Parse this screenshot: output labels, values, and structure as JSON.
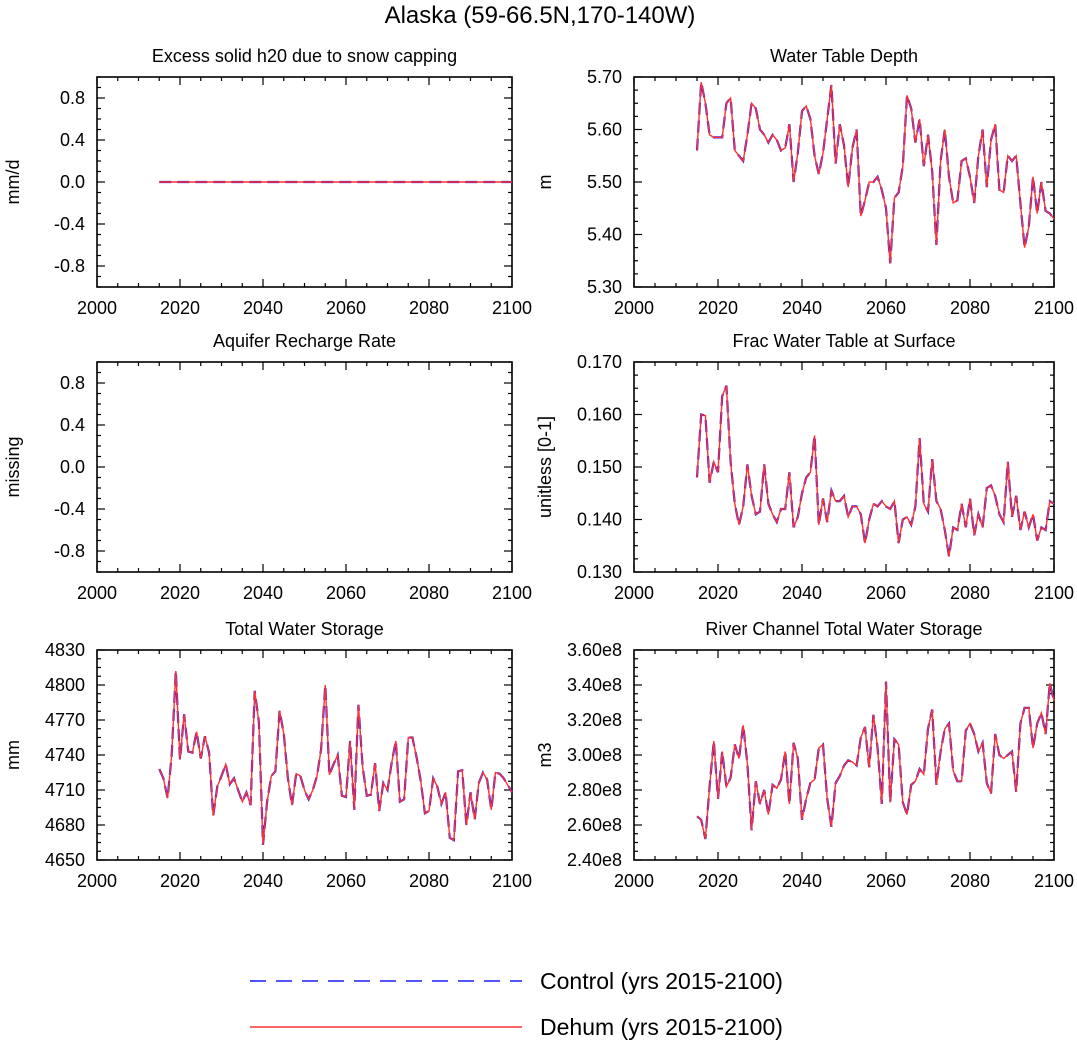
{
  "chart_data": {
    "title": "Alaska (59-66.5N,170-140W)",
    "legend": {
      "placement": "bottom-center",
      "entries": [
        {
          "name": "Control (yrs 2015-2100)",
          "color": "#1a1aff",
          "style": "dashed"
        },
        {
          "name": "Dehum (yrs 2015-2100)",
          "color": "#ff3030",
          "style": "solid"
        }
      ]
    },
    "panels": [
      {
        "id": "snow-capping",
        "type": "line",
        "title": "Excess solid h20 due to snow capping",
        "ylabel": "mm/d",
        "xlim": [
          2000,
          2100
        ],
        "xticks": [
          2000,
          2020,
          2040,
          2060,
          2080,
          2100
        ],
        "ylim": [
          -1.0,
          1.0
        ],
        "yticks": [
          -0.8,
          -0.4,
          0.0,
          0.4,
          0.8
        ],
        "ytick_labels": [
          "-0.8",
          "-0.4",
          "0.0",
          "0.4",
          "0.8"
        ],
        "x_start": 2015,
        "x_end": 2100,
        "constant_value": 0.0
      },
      {
        "id": "water-table-depth",
        "type": "line",
        "title": "Water Table Depth",
        "ylabel": "m",
        "xlim": [
          2000,
          2100
        ],
        "xticks": [
          2000,
          2020,
          2040,
          2060,
          2080,
          2100
        ],
        "ylim": [
          5.3,
          5.7
        ],
        "yticks": [
          5.3,
          5.4,
          5.5,
          5.6,
          5.7
        ],
        "ytick_labels": [
          "5.30",
          "5.40",
          "5.50",
          "5.60",
          "5.70"
        ],
        "x_start": 2015,
        "values": [
          5.56,
          5.69,
          5.65,
          5.59,
          5.585,
          5.585,
          5.585,
          5.65,
          5.66,
          5.56,
          5.55,
          5.54,
          5.59,
          5.65,
          5.64,
          5.6,
          5.59,
          5.575,
          5.59,
          5.58,
          5.56,
          5.565,
          5.61,
          5.5,
          5.555,
          5.635,
          5.645,
          5.62,
          5.55,
          5.515,
          5.555,
          5.62,
          5.685,
          5.535,
          5.61,
          5.57,
          5.49,
          5.565,
          5.6,
          5.435,
          5.465,
          5.5,
          5.5,
          5.51,
          5.485,
          5.45,
          5.345,
          5.47,
          5.48,
          5.53,
          5.665,
          5.64,
          5.575,
          5.62,
          5.53,
          5.59,
          5.52,
          5.38,
          5.54,
          5.6,
          5.51,
          5.46,
          5.465,
          5.54,
          5.545,
          5.51,
          5.46,
          5.55,
          5.6,
          5.49,
          5.58,
          5.61,
          5.485,
          5.48,
          5.55,
          5.54,
          5.55,
          5.46,
          5.375,
          5.415,
          5.51,
          5.44,
          5.5,
          5.445,
          5.44,
          5.43
        ]
      },
      {
        "id": "aquifer-recharge",
        "type": "line",
        "title": "Aquifer Recharge Rate",
        "ylabel": "missing",
        "xlim": [
          2000,
          2100
        ],
        "xticks": [
          2000,
          2020,
          2040,
          2060,
          2080,
          2100
        ],
        "ylim": [
          -1.0,
          1.0
        ],
        "yticks": [
          -0.8,
          -0.4,
          0.0,
          0.4,
          0.8
        ],
        "ytick_labels": [
          "-0.8",
          "-0.4",
          "0.0",
          "0.4",
          "0.8"
        ],
        "values": []
      },
      {
        "id": "frac-water-table",
        "type": "line",
        "title": "Frac Water Table at Surface",
        "ylabel": "unitless [0-1]",
        "xlim": [
          2000,
          2100
        ],
        "xticks": [
          2000,
          2020,
          2040,
          2060,
          2080,
          2100
        ],
        "ylim": [
          0.13,
          0.17
        ],
        "yticks": [
          0.13,
          0.14,
          0.15,
          0.16,
          0.17
        ],
        "ytick_labels": [
          "0.130",
          "0.140",
          "0.150",
          "0.160",
          "0.170"
        ],
        "x_start": 2015,
        "values": [
          0.148,
          0.16,
          0.1598,
          0.147,
          0.151,
          0.149,
          0.1635,
          0.1655,
          0.151,
          0.143,
          0.139,
          0.1425,
          0.1505,
          0.1445,
          0.141,
          0.1415,
          0.1505,
          0.143,
          0.141,
          0.1395,
          0.142,
          0.142,
          0.149,
          0.1385,
          0.1405,
          0.145,
          0.148,
          0.149,
          0.156,
          0.139,
          0.144,
          0.1395,
          0.1455,
          0.1435,
          0.1435,
          0.1445,
          0.1405,
          0.1425,
          0.1425,
          0.141,
          0.1355,
          0.14,
          0.143,
          0.1425,
          0.1435,
          0.1425,
          0.142,
          0.1435,
          0.1355,
          0.14,
          0.1405,
          0.139,
          0.1425,
          0.1555,
          0.143,
          0.1415,
          0.1515,
          0.1435,
          0.142,
          0.138,
          0.133,
          0.1385,
          0.138,
          0.143,
          0.1385,
          0.144,
          0.137,
          0.141,
          0.1385,
          0.146,
          0.1465,
          0.1445,
          0.141,
          0.1395,
          0.151,
          0.1405,
          0.1445,
          0.138,
          0.1415,
          0.1385,
          0.141,
          0.136,
          0.1385,
          0.138,
          0.1435,
          0.143
        ]
      },
      {
        "id": "total-water-storage",
        "type": "line",
        "title": "Total Water Storage",
        "ylabel": "mm",
        "xlim": [
          2000,
          2100
        ],
        "xticks": [
          2000,
          2020,
          2040,
          2060,
          2080,
          2100
        ],
        "ylim": [
          4650,
          4830
        ],
        "yticks": [
          4650,
          4680,
          4710,
          4740,
          4770,
          4800,
          4830
        ],
        "ytick_labels": [
          "4650",
          "4680",
          "4710",
          "4740",
          "4770",
          "4800",
          "4830"
        ],
        "x_start": 2015,
        "values": [
          4728,
          4720,
          4703,
          4740,
          4812,
          4736,
          4775,
          4743,
          4742,
          4760,
          4737,
          4756,
          4742,
          4688,
          4713,
          4722,
          4732,
          4715,
          4720,
          4710,
          4700,
          4708,
          4697,
          4795,
          4768,
          4663,
          4700,
          4722,
          4726,
          4778,
          4758,
          4720,
          4697,
          4724,
          4722,
          4710,
          4702,
          4710,
          4722,
          4745,
          4800,
          4723,
          4732,
          4740,
          4705,
          4704,
          4752,
          4693,
          4783,
          4730,
          4705,
          4706,
          4733,
          4692,
          4716,
          4710,
          4733,
          4752,
          4700,
          4702,
          4755,
          4755,
          4738,
          4718,
          4690,
          4692,
          4720,
          4713,
          4698,
          4708,
          4669,
          4667,
          4726,
          4727,
          4680,
          4708,
          4685,
          4716,
          4725,
          4719,
          4693,
          4725,
          4724,
          4720,
          4714,
          4708
        ]
      },
      {
        "id": "river-channel-storage",
        "type": "line",
        "title": "River Channel Total Water Storage",
        "ylabel": "m3",
        "xlim": [
          2000,
          2100
        ],
        "xticks": [
          2000,
          2020,
          2040,
          2060,
          2080,
          2100
        ],
        "ylim": [
          240000000,
          360000000
        ],
        "yticks": [
          240000000,
          260000000,
          280000000,
          300000000,
          320000000,
          340000000,
          360000000
        ],
        "ytick_labels": [
          "2.40e8",
          "2.60e8",
          "2.80e8",
          "3.00e8",
          "3.20e8",
          "3.40e8",
          "3.60e8"
        ],
        "x_start": 2015,
        "values": [
          265000000,
          263000000,
          252000000,
          282000000,
          308000000,
          275000000,
          302000000,
          282000000,
          287000000,
          306000000,
          298000000,
          317000000,
          295000000,
          257000000,
          285000000,
          272000000,
          280000000,
          266000000,
          283000000,
          281000000,
          286000000,
          302000000,
          272000000,
          307000000,
          298000000,
          263000000,
          275000000,
          284000000,
          286000000,
          304000000,
          306000000,
          275000000,
          259000000,
          284000000,
          288000000,
          294000000,
          297000000,
          296000000,
          294000000,
          310000000,
          316000000,
          293000000,
          323000000,
          304000000,
          272000000,
          342000000,
          273000000,
          309000000,
          306000000,
          273000000,
          266000000,
          283000000,
          285000000,
          292000000,
          289000000,
          315000000,
          326000000,
          283000000,
          302000000,
          315000000,
          318000000,
          291000000,
          285000000,
          285000000,
          314000000,
          318000000,
          312000000,
          302000000,
          307000000,
          284000000,
          278000000,
          312000000,
          300000000,
          298000000,
          300000000,
          302000000,
          279000000,
          318000000,
          327000000,
          327000000,
          304000000,
          318000000,
          324000000,
          312000000,
          341000000,
          331000000
        ]
      }
    ]
  }
}
